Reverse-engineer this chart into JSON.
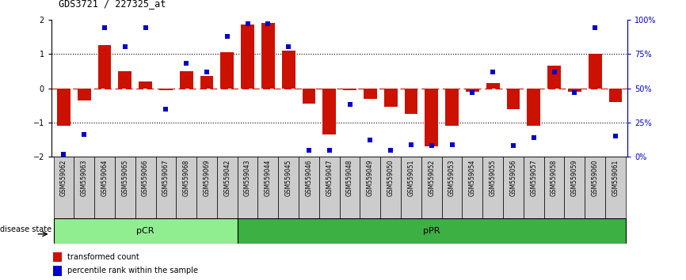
{
  "title": "GDS3721 / 227325_at",
  "samples": [
    "GSM559062",
    "GSM559063",
    "GSM559064",
    "GSM559065",
    "GSM559066",
    "GSM559067",
    "GSM559068",
    "GSM559069",
    "GSM559042",
    "GSM559043",
    "GSM559044",
    "GSM559045",
    "GSM559046",
    "GSM559047",
    "GSM559048",
    "GSM559049",
    "GSM559050",
    "GSM559051",
    "GSM559052",
    "GSM559053",
    "GSM559054",
    "GSM559055",
    "GSM559056",
    "GSM559057",
    "GSM559058",
    "GSM559059",
    "GSM559060",
    "GSM559061"
  ],
  "bar_values": [
    -1.1,
    -0.35,
    1.25,
    0.5,
    0.2,
    -0.05,
    0.5,
    0.35,
    1.05,
    1.85,
    1.9,
    1.1,
    -0.45,
    -1.35,
    -0.05,
    -0.3,
    -0.55,
    -0.75,
    -1.7,
    -1.1,
    -0.1,
    0.15,
    -0.6,
    -1.1,
    0.65,
    -0.1,
    1.0,
    -0.4
  ],
  "dot_values": [
    2,
    16,
    94,
    80,
    94,
    35,
    68,
    62,
    88,
    97,
    97,
    80,
    5,
    5,
    38,
    12,
    5,
    9,
    8,
    9,
    47,
    62,
    8,
    14,
    62,
    47,
    94,
    15
  ],
  "pcr_count": 9,
  "ppr_count": 19,
  "bar_color": "#CC1100",
  "dot_color": "#0000CC",
  "pcr_color": "#90EE90",
  "ppr_color": "#3CB043",
  "ylim": [
    -2,
    2
  ],
  "right_yticks": [
    0,
    25,
    50,
    75,
    100
  ],
  "right_yticklabels": [
    "0%",
    "25%",
    "50%",
    "75%",
    "100%"
  ]
}
